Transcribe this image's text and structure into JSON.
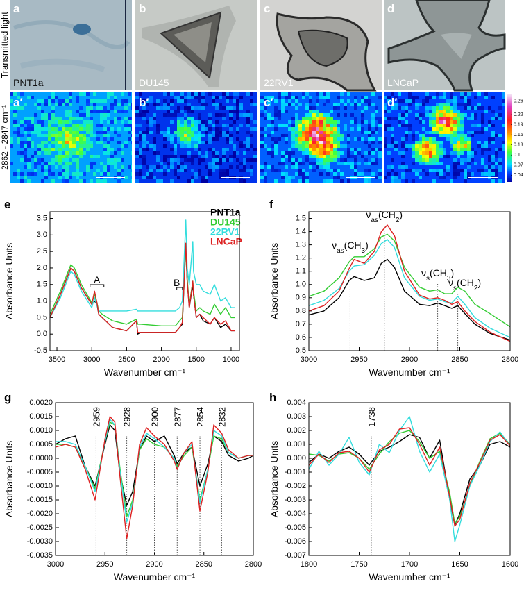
{
  "image_row_label": "Transmitted light",
  "image_panels": [
    {
      "letter": "a",
      "name": "PNT1a"
    },
    {
      "letter": "b",
      "name": "DU145"
    },
    {
      "letter": "c",
      "name": "22RV1"
    },
    {
      "letter": "d",
      "name": "LNCaP"
    }
  ],
  "heatmap_row_label": "2862 - 2847 cm⁻¹",
  "heatmap_panels": [
    "a′",
    "b′",
    "c′",
    "d′"
  ],
  "colorbar": {
    "clim": [
      0.02,
      0.28
    ],
    "ticks": [
      0.26,
      0.22,
      0.19,
      0.16,
      0.13,
      0.1,
      0.07,
      0.04
    ]
  },
  "chart_data": [
    {
      "type": "line",
      "label": "e",
      "xlabel": "Wavenumber cm⁻¹",
      "ylabel": "Absorbance Units",
      "xlim": [
        3600,
        880
      ],
      "ylim": [
        -0.5,
        3.7
      ],
      "xticks": [
        3500,
        3000,
        2500,
        2000,
        1500,
        1000
      ],
      "yticks": [
        -0.5,
        {
          "value": 0,
          "label": "0.0"
        },
        0.5,
        {
          "value": 1,
          "label": "1.0"
        },
        1.5,
        {
          "value": 2,
          "label": "2.0"
        },
        2.5,
        {
          "value": 3,
          "label": "3.0"
        },
        3.5
      ],
      "annotations": [
        {
          "text": "A",
          "x": 2925
        },
        {
          "text": "B",
          "x": 1740
        }
      ],
      "x": [
        3600,
        3450,
        3300,
        3250,
        3150,
        3000,
        2960,
        2925,
        2900,
        2850,
        2700,
        2500,
        2360,
        2340,
        2300,
        2000,
        1800,
        1740,
        1700,
        1650,
        1630,
        1600,
        1550,
        1540,
        1500,
        1450,
        1400,
        1300,
        1240,
        1150,
        1080,
        1000,
        950
      ],
      "series": [
        {
          "name": "PNT1a",
          "color": "#000000",
          "values": [
            0.5,
            1.2,
            2.0,
            1.9,
            1.4,
            0.9,
            1.0,
            0.9,
            0.6,
            0.5,
            0.2,
            0.1,
            0.4,
            0.0,
            0.05,
            0.05,
            0.05,
            0.2,
            0.3,
            2.7,
            1.6,
            0.8,
            1.5,
            1.2,
            0.5,
            0.6,
            0.4,
            0.3,
            0.5,
            0.2,
            0.3,
            0.1,
            0.1
          ]
        },
        {
          "name": "DU145",
          "color": "#33cc33",
          "values": [
            0.6,
            1.3,
            2.1,
            2.0,
            1.5,
            0.95,
            1.2,
            0.95,
            0.7,
            0.6,
            0.4,
            0.3,
            0.45,
            0.3,
            0.3,
            0.25,
            0.25,
            0.4,
            0.5,
            2.6,
            1.7,
            0.9,
            1.6,
            1.3,
            0.7,
            0.8,
            0.7,
            0.6,
            0.9,
            0.6,
            0.8,
            0.5,
            0.5
          ]
        },
        {
          "name": "22RV1",
          "color": "#33dddd",
          "values": [
            0.5,
            1.1,
            1.9,
            1.8,
            1.3,
            0.8,
            1.1,
            0.85,
            0.7,
            0.7,
            0.7,
            0.7,
            0.75,
            0.7,
            0.7,
            0.7,
            0.7,
            0.8,
            1.0,
            3.45,
            2.0,
            1.5,
            2.8,
            1.9,
            1.5,
            1.5,
            1.3,
            1.2,
            1.5,
            1.0,
            1.1,
            0.8,
            0.8
          ]
        },
        {
          "name": "LNCaP",
          "color": "#dd2222",
          "values": [
            0.5,
            1.2,
            2.0,
            1.9,
            1.4,
            0.9,
            1.3,
            0.95,
            0.6,
            0.5,
            0.2,
            0.1,
            0.4,
            0.05,
            0.05,
            0.05,
            0.05,
            0.2,
            0.35,
            2.75,
            1.6,
            0.8,
            1.6,
            1.2,
            0.5,
            0.6,
            0.5,
            0.3,
            0.5,
            0.3,
            0.4,
            0.1,
            0.1
          ]
        }
      ]
    },
    {
      "type": "line",
      "label": "f",
      "xlabel": "Wavenumber cm⁻¹",
      "ylabel": "Absorbance Units",
      "xlim": [
        3000,
        2800
      ],
      "ylim": [
        0.5,
        1.55
      ],
      "xticks": [
        3000,
        2950,
        2900,
        2850,
        2800
      ],
      "yticks": [
        0.5,
        0.6,
        0.7,
        0.8,
        0.9,
        {
          "value": 1,
          "label": "1.0"
        },
        1.1,
        1.2,
        1.3,
        1.4,
        1.5
      ],
      "annotations": [
        {
          "text": "νas(CH3)",
          "x": 2959
        },
        {
          "text": "νas(CH2)",
          "x": 2925
        },
        {
          "text": "νs(CH3)",
          "x": 2872
        },
        {
          "text": "νs(CH2)",
          "x": 2852
        }
      ],
      "x": [
        3000,
        2985,
        2970,
        2960,
        2955,
        2945,
        2935,
        2928,
        2922,
        2915,
        2905,
        2890,
        2880,
        2872,
        2865,
        2858,
        2852,
        2845,
        2835,
        2820,
        2800
      ],
      "series": [
        {
          "color": "#000000",
          "values": [
            0.77,
            0.8,
            0.9,
            1.03,
            1.06,
            1.03,
            1.05,
            1.16,
            1.19,
            1.13,
            0.95,
            0.85,
            0.84,
            0.86,
            0.84,
            0.82,
            0.84,
            0.78,
            0.7,
            0.63,
            0.58
          ]
        },
        {
          "color": "#33cc33",
          "values": [
            0.91,
            0.95,
            1.05,
            1.17,
            1.21,
            1.21,
            1.27,
            1.36,
            1.38,
            1.33,
            1.13,
            0.98,
            0.95,
            0.96,
            0.93,
            0.93,
            0.98,
            0.95,
            0.85,
            0.78,
            0.68
          ]
        },
        {
          "color": "#33dddd",
          "values": [
            0.84,
            0.88,
            0.97,
            1.1,
            1.14,
            1.15,
            1.22,
            1.31,
            1.34,
            1.28,
            1.05,
            0.91,
            0.88,
            0.89,
            0.87,
            0.86,
            0.91,
            0.85,
            0.75,
            0.67,
            0.6
          ]
        },
        {
          "color": "#dd2222",
          "values": [
            0.8,
            0.84,
            0.95,
            1.12,
            1.19,
            1.16,
            1.25,
            1.4,
            1.45,
            1.37,
            1.1,
            0.92,
            0.89,
            0.9,
            0.88,
            0.85,
            0.87,
            0.8,
            0.72,
            0.64,
            0.57
          ]
        }
      ]
    },
    {
      "type": "line",
      "label": "g",
      "xlabel": "Wavenumber cm⁻¹",
      "ylabel": "Absorbance Units",
      "xlim": [
        3000,
        2800
      ],
      "ylim": [
        -0.0035,
        0.002
      ],
      "xticks": [
        3000,
        2950,
        2900,
        2850,
        2800
      ],
      "yticks": [
        -0.0035,
        {
          "value": -0.003,
          "label": "-0.0030"
        },
        -0.0025,
        {
          "value": -0.002,
          "label": "-0.0020"
        },
        -0.0015,
        {
          "value": -0.001,
          "label": "-0.0010"
        },
        -0.0005,
        {
          "value": 0,
          "label": "0.0000"
        },
        0.0005,
        {
          "value": 0.001,
          "label": "0.0010"
        },
        0.0015,
        {
          "value": 0.002,
          "label": "0.0020"
        }
      ],
      "markers": [
        2959,
        2928,
        2900,
        2877,
        2854,
        2832
      ],
      "x": [
        3000,
        2990,
        2980,
        2970,
        2960,
        2950,
        2945,
        2940,
        2935,
        2928,
        2922,
        2915,
        2908,
        2900,
        2890,
        2880,
        2877,
        2870,
        2862,
        2854,
        2846,
        2840,
        2832,
        2825,
        2815,
        2805,
        2800
      ],
      "series": [
        {
          "color": "#000000",
          "values": [
            0.0005,
            0.0007,
            0.0008,
            -0.0003,
            -0.001,
            0.0005,
            0.0012,
            0.001,
            -0.0005,
            -0.0017,
            -0.0012,
            0.0003,
            0.0008,
            0.0006,
            0.0008,
            0.0001,
            -0.0002,
            0.0002,
            0.0004,
            -0.001,
            -0.0002,
            0.0008,
            0.0006,
            0.0001,
            -0.0001,
            0.0,
            0.0001
          ]
        },
        {
          "color": "#33cc33",
          "values": [
            0.0005,
            0.0005,
            0.0004,
            -0.0003,
            -0.0011,
            0.0006,
            0.0013,
            0.0012,
            -0.0003,
            -0.0021,
            -0.0015,
            0.0003,
            0.0007,
            0.0005,
            0.0004,
            0.0,
            -0.0003,
            0.0001,
            0.0004,
            -0.0015,
            -0.0004,
            0.0008,
            0.0007,
            0.0002,
            0.0,
            0.0001,
            0.0001
          ]
        },
        {
          "color": "#33dddd",
          "values": [
            0.0006,
            0.0006,
            0.0005,
            -0.0003,
            -0.0012,
            0.0006,
            0.0014,
            0.0012,
            -0.0004,
            -0.0023,
            -0.0016,
            0.0004,
            0.0009,
            0.0007,
            0.0004,
            0.0,
            -0.0004,
            0.0002,
            0.0005,
            -0.0016,
            -0.0004,
            0.001,
            0.0008,
            0.0002,
            0.0,
            0.0001,
            0.0001
          ]
        },
        {
          "color": "#dd2222",
          "values": [
            0.0004,
            0.0005,
            0.0004,
            -0.0004,
            -0.0015,
            0.0007,
            0.0015,
            0.0013,
            -0.0006,
            -0.0029,
            -0.0017,
            0.0005,
            0.0011,
            0.0008,
            0.0005,
            -0.0001,
            -0.0004,
            0.0002,
            0.0006,
            -0.0019,
            -0.0005,
            0.0012,
            0.0009,
            0.0003,
            0.0,
            0.0001,
            0.0001
          ]
        }
      ]
    },
    {
      "type": "line",
      "label": "h",
      "xlabel": "Wavenumber cm⁻¹",
      "ylabel": "Absorbance Units",
      "xlim": [
        1800,
        1600
      ],
      "ylim": [
        -0.007,
        0.004
      ],
      "xticks": [
        1800,
        1750,
        1700,
        1650,
        1600
      ],
      "yticks": [
        -0.007,
        -0.006,
        -0.005,
        -0.004,
        -0.003,
        -0.002,
        -0.001,
        {
          "value": 0,
          "label": "0.000"
        },
        0.001,
        0.002,
        0.003,
        0.004
      ],
      "markers": [
        1738
      ],
      "x": [
        1800,
        1790,
        1780,
        1770,
        1760,
        1750,
        1740,
        1730,
        1720,
        1710,
        1700,
        1690,
        1680,
        1670,
        1660,
        1655,
        1650,
        1640,
        1630,
        1620,
        1610,
        1600
      ],
      "series": [
        {
          "color": "#000000",
          "values": [
            -0.0003,
            0.0003,
            0.0,
            0.0005,
            0.0008,
            0.0003,
            -0.0005,
            0.0005,
            0.0008,
            0.0012,
            0.0017,
            0.0015,
            0.0,
            0.0013,
            -0.003,
            -0.0048,
            -0.004,
            -0.0015,
            -0.0005,
            0.001,
            0.0012,
            0.0008
          ]
        },
        {
          "color": "#33cc33",
          "values": [
            0.0003,
            0.0002,
            -0.0002,
            0.0003,
            0.0004,
            0.0,
            -0.0008,
            0.0003,
            0.0012,
            0.0018,
            0.002,
            0.0012,
            0.0,
            0.0005,
            -0.0025,
            -0.0047,
            -0.0042,
            -0.002,
            -0.0002,
            0.0014,
            0.0018,
            0.001
          ]
        },
        {
          "color": "#33dddd",
          "values": [
            -0.0008,
            0.0005,
            -0.0005,
            0.0003,
            0.0015,
            -0.0003,
            -0.0012,
            0.001,
            0.0004,
            0.002,
            0.003,
            0.0005,
            -0.001,
            0.0003,
            -0.003,
            -0.006,
            -0.0048,
            -0.002,
            -0.0005,
            0.0012,
            0.0019,
            0.0009
          ]
        },
        {
          "color": "#dd2222",
          "values": [
            -0.0005,
            0.0003,
            -0.0003,
            0.0004,
            0.0005,
            0.0,
            -0.001,
            0.0006,
            0.001,
            0.0021,
            0.0022,
            0.001,
            -0.0005,
            0.0008,
            -0.0028,
            -0.0049,
            -0.0044,
            -0.0018,
            -0.0003,
            0.0013,
            0.0017,
            0.0009
          ]
        }
      ]
    }
  ]
}
